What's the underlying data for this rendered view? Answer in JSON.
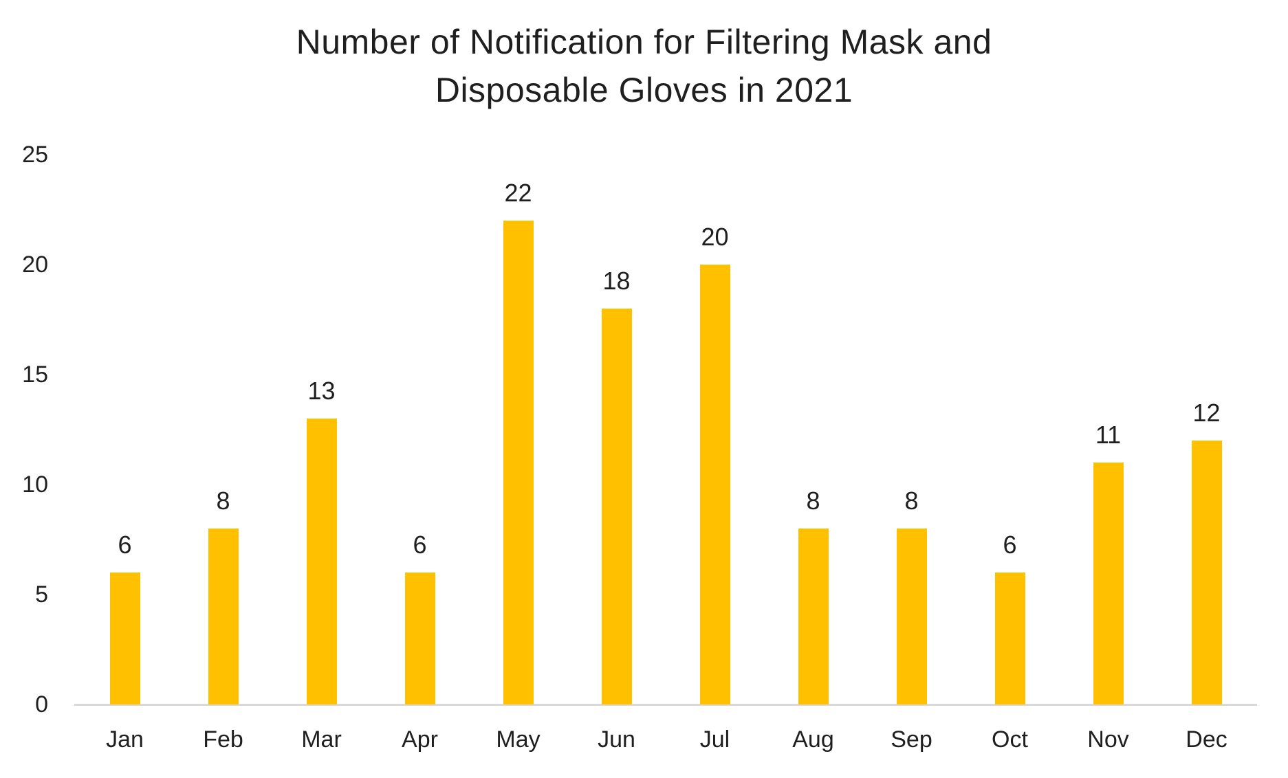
{
  "page": {
    "background": "#FFFFFF"
  },
  "chart_data": {
    "type": "bar",
    "title": "Number of Notification for Filtering Mask and Disposable Gloves in 2021",
    "title_lines": [
      "Number of Notification for Filtering Mask and",
      "Disposable Gloves in 2021"
    ],
    "categories": [
      "Jan",
      "Feb",
      "Mar",
      "Apr",
      "May",
      "Jun",
      "Jul",
      "Aug",
      "Sep",
      "Oct",
      "Nov",
      "Dec"
    ],
    "values": [
      6,
      8,
      13,
      6,
      22,
      18,
      20,
      8,
      8,
      6,
      11,
      12
    ],
    "xlabel": "",
    "ylabel": "",
    "ylim": [
      0,
      25
    ],
    "yticks": [
      0,
      5,
      10,
      15,
      20,
      25
    ],
    "grid": false,
    "legend": "none",
    "data_labels": "outside_end",
    "colors": {
      "bar": "#FFC000",
      "axis_line": "#D9D9D9",
      "text": "#1F1F1F"
    }
  }
}
